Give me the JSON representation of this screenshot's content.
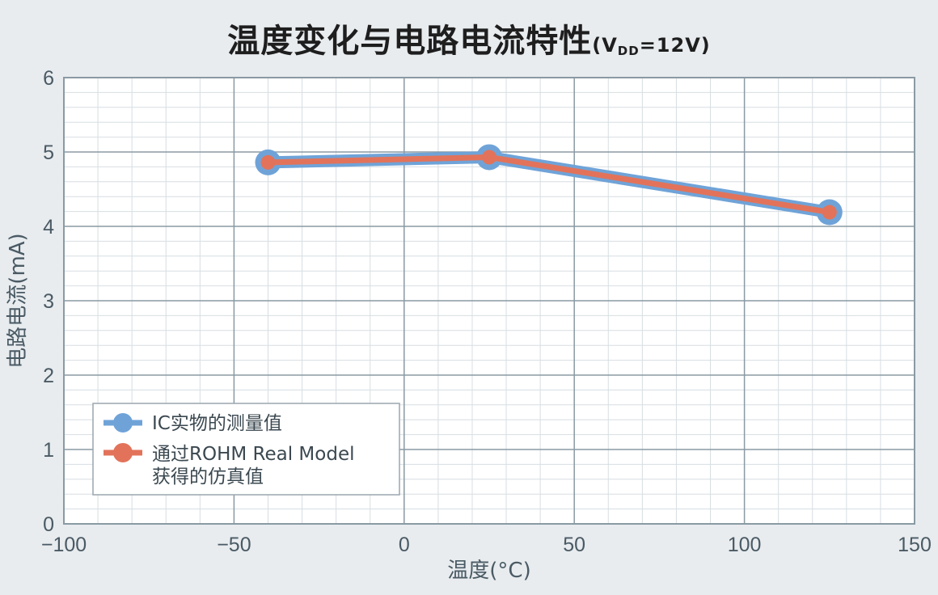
{
  "chart_data": {
    "type": "line",
    "title": "温度变化与电路电流特性",
    "title_suffix": "(V",
    "title_subscript": "DD",
    "title_suffix_end": "=12V)",
    "xlabel": "温度(°C)",
    "ylabel": "电路电流(mA)",
    "xlim": [
      -100,
      150
    ],
    "ylim": [
      0,
      6
    ],
    "xticks": [
      -100,
      -50,
      0,
      50,
      100,
      150
    ],
    "xtick_labels": [
      "−100",
      "−50",
      "0",
      "50",
      "100",
      "150"
    ],
    "yticks": [
      0,
      1,
      2,
      3,
      4,
      5,
      6
    ],
    "ytick_labels": [
      "0",
      "1",
      "2",
      "3",
      "4",
      "5",
      "6"
    ],
    "grid": true,
    "minor_grid": true,
    "legend_position": "bottom-left",
    "series": [
      {
        "name": "IC实物的测量值",
        "color": "#6fa3d8",
        "x": [
          -40,
          25,
          125
        ],
        "y": [
          4.86,
          4.93,
          4.19
        ]
      },
      {
        "name": "通过ROHM Real Model获得的仿真值",
        "name_lines": [
          "通过ROHM Real Model",
          "获得的仿真值"
        ],
        "color": "#e2735a",
        "x": [
          -40,
          25,
          125
        ],
        "y": [
          4.86,
          4.93,
          4.19
        ]
      }
    ]
  }
}
